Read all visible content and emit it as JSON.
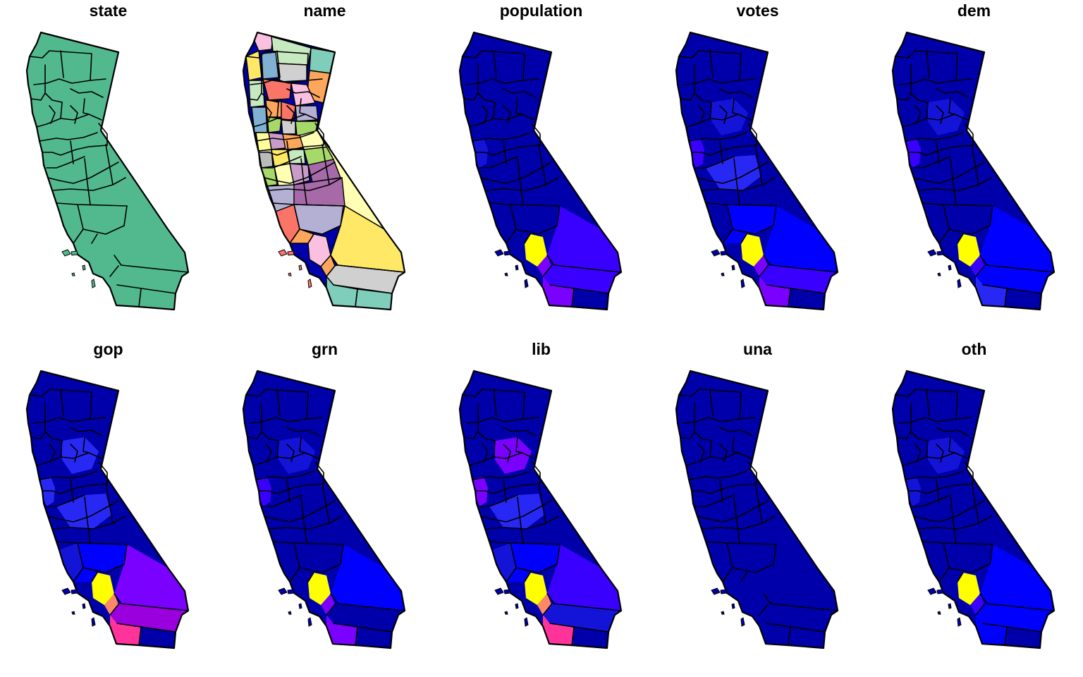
{
  "colors": {
    "c0": "#0000AA",
    "c1": "#1414D9",
    "c2": "#2828F4",
    "c3": "#0000FF",
    "c4": "#3A00FF",
    "c5": "#7A00FF",
    "c6": "#9900DD",
    "c7": "#FF3399",
    "c8": "#FF8866",
    "c9": "#FFFF00",
    "state": "#52B98F"
  },
  "panels": [
    {
      "title": "state",
      "mode": "state"
    },
    {
      "title": "name",
      "mode": "name"
    },
    {
      "title": "population",
      "regions": {
        "bay": "c1",
        "sac": "c0",
        "central": "c0",
        "kern": "c0",
        "sbarb": "c0",
        "vent": "c0",
        "la": "c9",
        "sbern": "c4",
        "orange": "c5",
        "riv": "c4",
        "sd": "c5",
        "imp": "c0"
      }
    },
    {
      "title": "votes",
      "regions": {
        "bay": "c4",
        "sac": "c1",
        "central": "c2",
        "kern": "c3",
        "sbarb": "c0",
        "vent": "c3",
        "la": "c9",
        "sbern": "c3",
        "orange": "c5",
        "riv": "c4",
        "sd": "c5",
        "imp": "c0"
      }
    },
    {
      "title": "dem",
      "regions": {
        "bay": "c4",
        "sac": "c1",
        "central": "c0",
        "kern": "c0",
        "sbarb": "c0",
        "vent": "c0",
        "la": "c9",
        "sbern": "c3",
        "orange": "c4",
        "riv": "c3",
        "sd": "c2",
        "imp": "c0"
      }
    },
    {
      "title": "gop",
      "regions": {
        "bay": "c2",
        "sac": "c2",
        "central": "c2",
        "kern": "c3",
        "sbarb": "c1",
        "vent": "c3",
        "la": "c9",
        "sbern": "c5",
        "orange": "c8",
        "riv": "c6",
        "sd": "c7",
        "imp": "c0"
      }
    },
    {
      "title": "grn",
      "regions": {
        "bay": "c4",
        "sac": "c1",
        "central": "c0",
        "kern": "c0",
        "sbarb": "c0",
        "vent": "c0",
        "la": "c9",
        "sbern": "c3",
        "orange": "c5",
        "riv": "c0",
        "sd": "c5",
        "imp": "c0"
      }
    },
    {
      "title": "lib",
      "regions": {
        "bay": "c5",
        "sac": "c5",
        "central": "c2",
        "kern": "c3",
        "sbarb": "c1",
        "vent": "c3",
        "la": "c9",
        "sbern": "c4",
        "orange": "c8",
        "riv": "c1",
        "sd": "c7",
        "imp": "c0"
      }
    },
    {
      "title": "una",
      "regions": {
        "bay": "c0",
        "sac": "c0",
        "central": "c0",
        "kern": "c0",
        "sbarb": "c0",
        "vent": "c0",
        "la": "c0",
        "sbern": "c0",
        "orange": "c0",
        "riv": "c0",
        "sd": "c0",
        "imp": "c0"
      }
    },
    {
      "title": "oth",
      "regions": {
        "bay": "c1",
        "sac": "c1",
        "central": "c0",
        "kern": "c0",
        "sbarb": "c0",
        "vent": "c0",
        "la": "c9",
        "sbern": "c3",
        "orange": "c4",
        "riv": "c3",
        "sd": "c3",
        "imp": "c0"
      }
    }
  ]
}
